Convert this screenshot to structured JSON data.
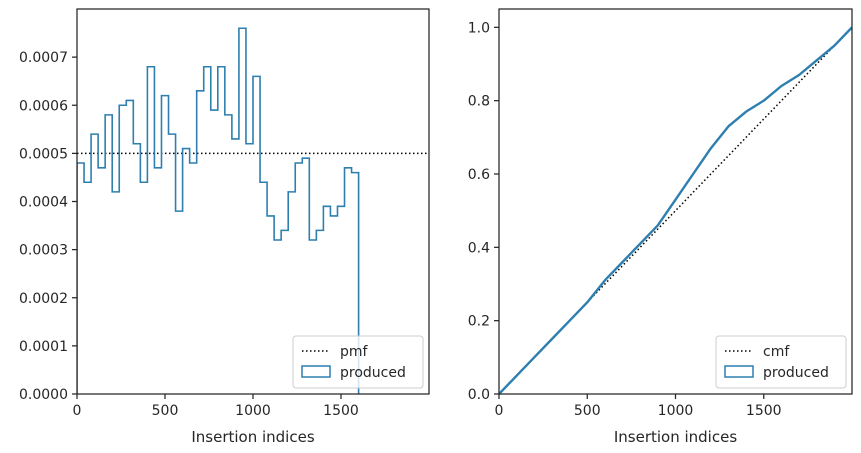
{
  "chart_data": [
    {
      "type": "histogram-step",
      "xlabel": "Insertion indices",
      "ylabel": "",
      "xlim": [
        0,
        2000
      ],
      "ylim": [
        0,
        0.0008
      ],
      "xticks": [
        "0",
        "500",
        "1000",
        "1500"
      ],
      "xtick_values": [
        0,
        500,
        1000,
        1500
      ],
      "yticks": [
        "0.0000",
        "0.0001",
        "0.0002",
        "0.0003",
        "0.0004",
        "0.0005",
        "0.0006",
        "0.0007"
      ],
      "ytick_values": [
        0,
        0.0001,
        0.0002,
        0.0003,
        0.0004,
        0.0005,
        0.0006,
        0.0007
      ],
      "legend_position": "lower-right",
      "bin_width": 40,
      "reference": {
        "name": "pmf",
        "value": 0.0005,
        "style": "dotted",
        "color": "#000000"
      },
      "series": [
        {
          "name": "produced",
          "color": "#2e7fb0",
          "values": [
            0.00048,
            0.00044,
            0.00054,
            0.00047,
            0.00058,
            0.00042,
            0.0006,
            0.00061,
            0.00052,
            0.00044,
            0.00068,
            0.00047,
            0.00062,
            0.00054,
            0.00038,
            0.00051,
            0.00048,
            0.00063,
            0.00068,
            0.00059,
            0.00068,
            0.00058,
            0.00053,
            0.00076,
            0.00052,
            0.00066,
            0.00044,
            0.00037,
            0.00032,
            0.00034,
            0.00042,
            0.00048,
            0.00049,
            0.00032,
            0.00034,
            0.00039,
            0.00037,
            0.00039,
            0.00047,
            0.00046
          ]
        }
      ]
    },
    {
      "type": "line",
      "xlabel": "Insertion indices",
      "ylabel": "",
      "xlim": [
        0,
        2000
      ],
      "ylim": [
        0,
        1.05
      ],
      "xticks": [
        "0",
        "500",
        "1000",
        "1500"
      ],
      "xtick_values": [
        0,
        500,
        1000,
        1500
      ],
      "yticks": [
        "0.0",
        "0.2",
        "0.4",
        "0.6",
        "0.8",
        "1.0"
      ],
      "ytick_values": [
        0,
        0.2,
        0.4,
        0.6,
        0.8,
        1.0
      ],
      "legend_position": "lower-right",
      "reference": {
        "name": "cmf",
        "x": [
          0,
          2000
        ],
        "y": [
          0,
          1.0
        ],
        "style": "dotted",
        "color": "#000000"
      },
      "series": [
        {
          "name": "produced",
          "color": "#2e7fb0",
          "x": [
            0,
            100,
            200,
            300,
            400,
            500,
            600,
            700,
            800,
            900,
            1000,
            1100,
            1200,
            1300,
            1400,
            1500,
            1600,
            1700,
            1800,
            1900,
            2000
          ],
          "y": [
            0,
            0.05,
            0.1,
            0.15,
            0.2,
            0.25,
            0.31,
            0.36,
            0.41,
            0.46,
            0.53,
            0.6,
            0.67,
            0.73,
            0.77,
            0.8,
            0.84,
            0.87,
            0.91,
            0.95,
            1.0
          ]
        }
      ]
    }
  ]
}
